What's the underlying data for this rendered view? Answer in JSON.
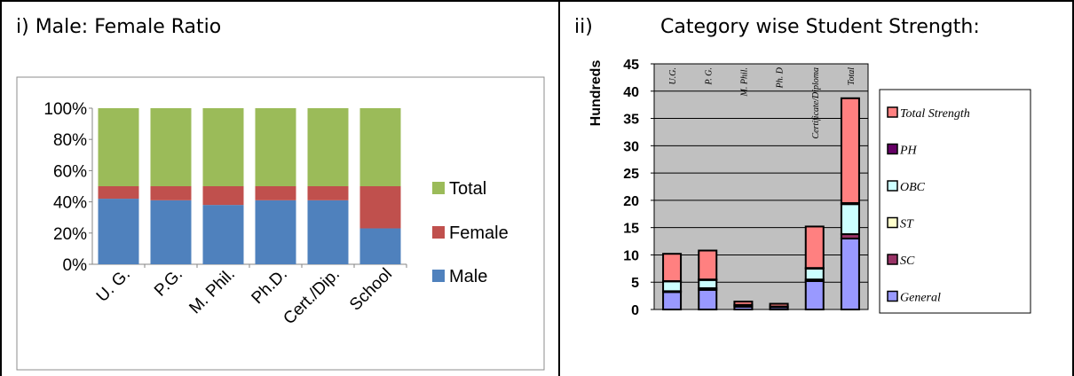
{
  "chart_data": [
    {
      "type": "bar",
      "stacked": true,
      "percent_stacked": true,
      "title": "i) Male: Female Ratio",
      "categories": [
        "U. G.",
        "P.G.",
        "M. Phil.",
        "Ph.D.",
        "Cert./Dip.",
        "School"
      ],
      "series": [
        {
          "name": "Male",
          "color": "#4f81bd",
          "values": [
            42,
            41,
            38,
            41,
            41,
            23
          ]
        },
        {
          "name": "Female",
          "color": "#c0504d",
          "values": [
            8,
            9,
            12,
            9,
            9,
            27
          ]
        },
        {
          "name": "Total",
          "color": "#9bbb59",
          "values": [
            50,
            50,
            50,
            50,
            50,
            50
          ]
        }
      ],
      "yticks": [
        "0%",
        "20%",
        "40%",
        "60%",
        "80%",
        "100%"
      ],
      "ylim": [
        0,
        100
      ],
      "legend": "right",
      "grid": false
    },
    {
      "type": "bar",
      "stacked": true,
      "title_num": "ii)",
      "title": "Category wise Student Strength:",
      "ylabel": "Hundreds",
      "categories": [
        "U.G.",
        "P. G.",
        "M. Phil.",
        "Ph. D",
        "Certificate/Diploma",
        "Total"
      ],
      "series": [
        {
          "name": "General",
          "color": "#9999ff",
          "values": [
            3.2,
            3.6,
            0.5,
            0.4,
            5.2,
            13.0
          ]
        },
        {
          "name": "SC",
          "color": "#993366",
          "values": [
            0.15,
            0.3,
            0.1,
            0.05,
            0.3,
            0.8
          ]
        },
        {
          "name": "ST",
          "color": "#ffffcc",
          "values": [
            0.0,
            0.0,
            0.0,
            0.0,
            0.0,
            0.0
          ]
        },
        {
          "name": "OBC",
          "color": "#ccffff",
          "values": [
            1.8,
            1.5,
            0.2,
            0.1,
            2.0,
            5.5
          ]
        },
        {
          "name": "PH",
          "color": "#660066",
          "values": [
            0.05,
            0.1,
            0.05,
            0.0,
            0.1,
            0.2
          ]
        },
        {
          "name": "Total Strength",
          "color": "#ff8080",
          "values": [
            5.0,
            5.3,
            0.6,
            0.5,
            7.6,
            19.2
          ]
        }
      ],
      "legend_order": [
        "Total Strength",
        "PH",
        "OBC",
        "ST",
        "SC",
        "General"
      ],
      "ylim": [
        0,
        45
      ],
      "yticks": [
        "0",
        "5",
        "10",
        "15",
        "20",
        "25",
        "30",
        "35",
        "40",
        "45"
      ],
      "legend": "right",
      "grid": true
    }
  ]
}
